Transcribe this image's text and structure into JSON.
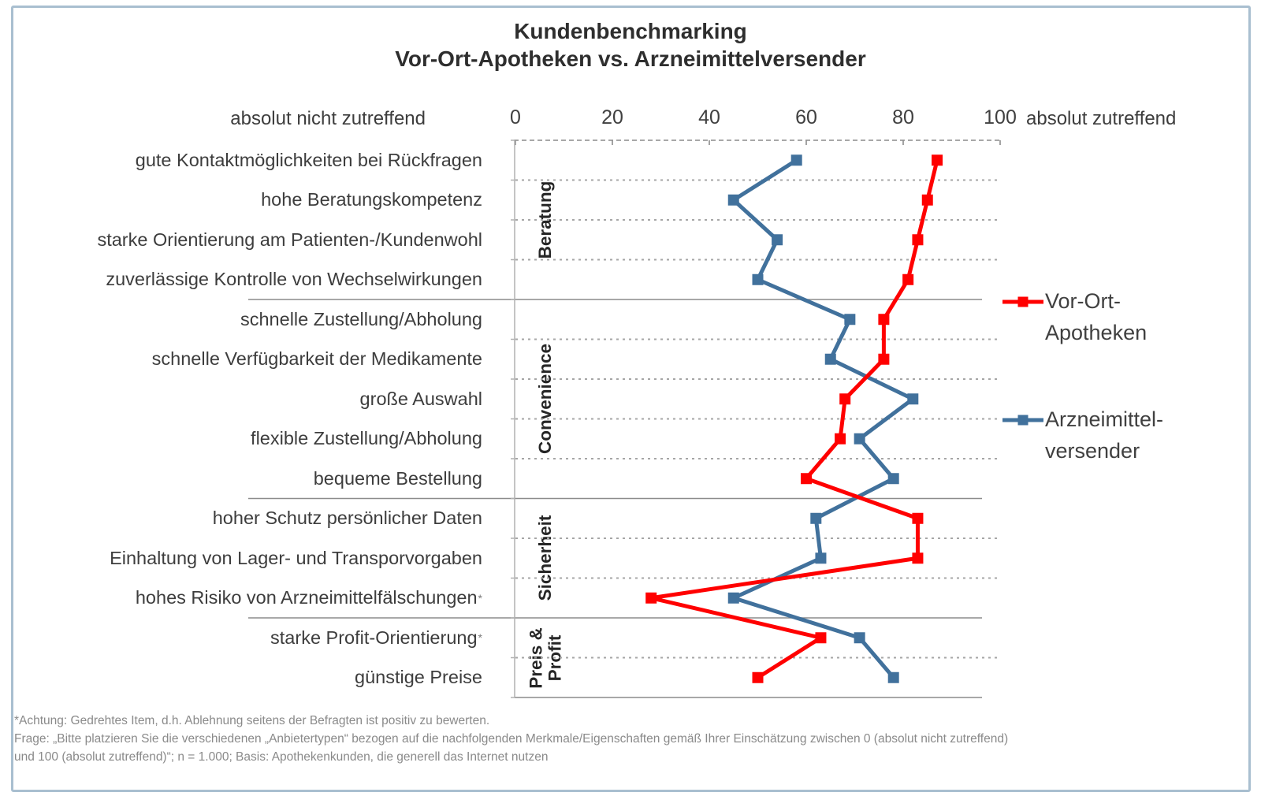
{
  "title": {
    "line1": "Kundenbenchmarking",
    "line2": "Vor-Ort-Apotheken vs. Arzneimittelversender"
  },
  "axis": {
    "left_label": "absolut nicht zutreffend",
    "right_label": "absolut zutreffend",
    "ticks": [
      0,
      20,
      40,
      60,
      80,
      100
    ]
  },
  "legend": [
    {
      "name": "Vor-Ort-Apotheken",
      "lines": [
        "Vor-Ort-",
        "Apotheken"
      ],
      "color": "#FF0000"
    },
    {
      "name": "Arzneimittelversender",
      "lines": [
        "Arzneimittel-",
        "versender"
      ],
      "color": "#41719C"
    }
  ],
  "chart_data": {
    "type": "line",
    "orientation": "horizontal-categories",
    "title": "Kundenbenchmarking Vor-Ort-Apotheken vs. Arzneimittelversender",
    "xlim": [
      0,
      100
    ],
    "grid": "dotted-row-separators",
    "legend_position": "right",
    "categories": [
      "gute Kontaktmöglichkeiten bei Rückfragen",
      "hohe Beratungskompetenz",
      "starke Orientierung am Patienten-/Kundenwohl",
      "zuverlässige Kontrolle von Wechselwirkungen",
      "schnelle Zustellung/Abholung",
      "schnelle Verfügbarkeit der Medikamente",
      "große Auswahl",
      "flexible Zustellung/Abholung",
      "bequeme Bestellung",
      "hoher Schutz persönlicher Daten",
      "Einhaltung von Lager- und Transporvorgaben",
      "hohes Risiko von Arzneimittelfälschungen*",
      "starke Profit-Orientierung*",
      "günstige Preise"
    ],
    "groups": [
      {
        "label": "Beratung",
        "span": 4
      },
      {
        "label": "Convenience",
        "span": 5
      },
      {
        "label": "Sicherheit",
        "span": 3
      },
      {
        "label": "Preis &\nProfit",
        "span": 2
      }
    ],
    "series": [
      {
        "name": "Vor-Ort-Apotheken",
        "color": "#FF0000",
        "values": [
          87,
          85,
          83,
          81,
          76,
          76,
          68,
          67,
          60,
          83,
          83,
          28,
          63,
          50
        ]
      },
      {
        "name": "Arzneimittelversender",
        "color": "#41719C",
        "values": [
          58,
          45,
          54,
          50,
          69,
          65,
          82,
          71,
          78,
          62,
          63,
          45,
          71,
          78
        ]
      }
    ]
  },
  "footnotes": [
    "*Achtung: Gedrehtes Item, d.h. Ablehnung seitens der Befragten ist positiv zu bewerten.",
    "Frage: „Bitte platzieren Sie die verschiedenen „Anbietertypen“ bezogen auf die nachfolgenden Merkmale/Eigenschaften gemäß  Ihrer Einschätzung zwischen 0 (absolut nicht zutreffend)",
    "und 100 (absolut zutreffend)“; n = 1.000; Basis: Apothekenkunden, die generell das Internet nutzen"
  ]
}
